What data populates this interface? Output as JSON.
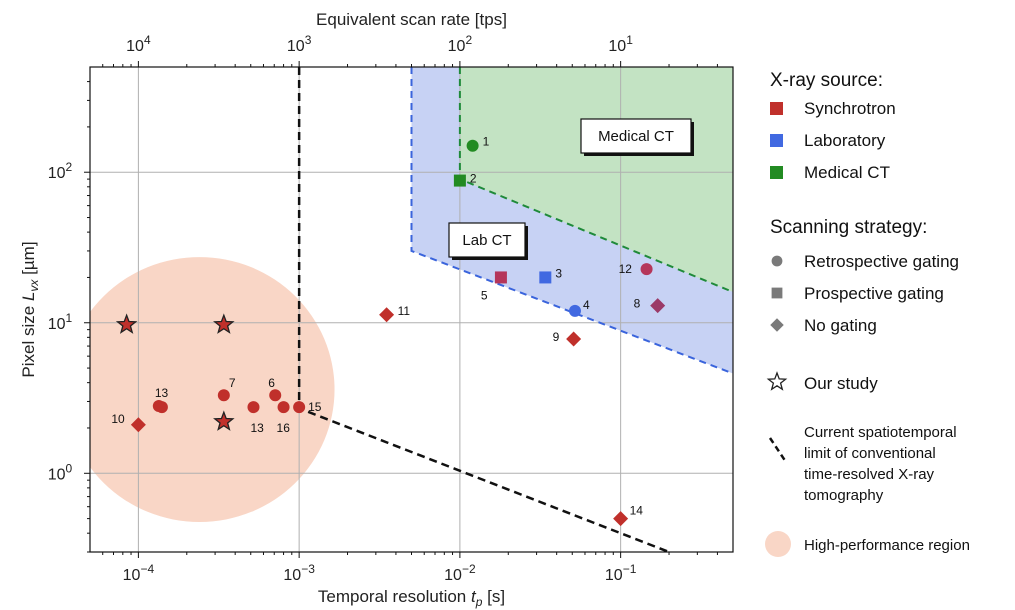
{
  "chart_data": {
    "type": "scatter",
    "xscale": "log",
    "yscale": "log",
    "xlim": [
      5e-05,
      0.5
    ],
    "ylim": [
      0.3,
      500
    ],
    "grid": true,
    "xlabel": "Temporal resolution",
    "xlabel_symbol": "t",
    "xlabel_sub": "p",
    "xlabel_unit": " [s]",
    "ylabel": "Pixel size",
    "ylabel_symbol": "L",
    "ylabel_sub": "vx",
    "ylabel_unit": " [µm]",
    "top_xlabel": "Equivalent scan rate [tps]",
    "x_ticks": [
      {
        "value": 0.0001,
        "base": "10",
        "exp": "−4"
      },
      {
        "value": 0.001,
        "base": "10",
        "exp": "−3"
      },
      {
        "value": 0.01,
        "base": "10",
        "exp": "−2"
      },
      {
        "value": 0.1,
        "base": "10",
        "exp": "−1"
      }
    ],
    "top_ticks": [
      {
        "value": 0.0001,
        "base": "10",
        "exp": "4"
      },
      {
        "value": 0.001,
        "base": "10",
        "exp": "3"
      },
      {
        "value": 0.01,
        "base": "10",
        "exp": "2"
      },
      {
        "value": 0.1,
        "base": "10",
        "exp": "1"
      }
    ],
    "y_ticks": [
      {
        "value": 1,
        "base": "10",
        "exp": "0"
      },
      {
        "value": 10,
        "base": "10",
        "exp": "1"
      },
      {
        "value": 100,
        "base": "10",
        "exp": "2"
      }
    ],
    "colors": {
      "synchrotron": "#c0302b",
      "laboratory": "#4169e1",
      "medical": "#228b22",
      "synchrotron_gated": "#b5365a",
      "synchrotron_nogate_purple": "#9b3a68",
      "medical_region_fill": "#c3e3c3",
      "lab_region_fill": "#c7d2f4",
      "hp_region_fill": "#f9d6c6"
    },
    "regions": {
      "medical_ct_label": "Medical CT",
      "lab_ct_label": "Lab CT",
      "medical_polygon": [
        [
          0.01,
          500
        ],
        [
          0.5,
          500
        ],
        [
          0.5,
          16
        ],
        [
          0.01,
          90
        ]
      ],
      "lab_polygon": [
        [
          0.005,
          500
        ],
        [
          0.5,
          500
        ],
        [
          0.5,
          4.6
        ],
        [
          0.005,
          30
        ]
      ],
      "high_perf_center": [
        0.00024,
        3.6
      ],
      "high_perf_radius_decades": [
        0.84,
        0.88
      ]
    },
    "limit_line": [
      [
        0.001,
        500
      ],
      [
        0.001,
        2.7
      ],
      [
        0.2,
        0.3
      ]
    ],
    "points": [
      {
        "x": 0.012,
        "y": 150,
        "source": "medical",
        "marker": "circle",
        "label": "1"
      },
      {
        "x": 0.01,
        "y": 88,
        "source": "medical",
        "marker": "square",
        "label": "2"
      },
      {
        "x": 0.034,
        "y": 20,
        "source": "laboratory",
        "marker": "square",
        "label": "3"
      },
      {
        "x": 0.052,
        "y": 12,
        "source": "laboratory",
        "marker": "circle",
        "label": "4"
      },
      {
        "x": 0.018,
        "y": 20,
        "source": "synchrotron",
        "marker": "square",
        "label": "5"
      },
      {
        "x": 0.00071,
        "y": 3.3,
        "source": "synchrotron",
        "marker": "circle",
        "label": "6"
      },
      {
        "x": 0.00034,
        "y": 3.3,
        "source": "synchrotron",
        "marker": "circle",
        "label": "7"
      },
      {
        "x": 0.17,
        "y": 13,
        "source": "synchrotron",
        "marker": "diamond",
        "label": "8"
      },
      {
        "x": 0.051,
        "y": 7.8,
        "source": "synchrotron",
        "marker": "diamond",
        "label": "9"
      },
      {
        "x": 0.0001,
        "y": 2.1,
        "source": "synchrotron",
        "marker": "diamond",
        "label": "10"
      },
      {
        "x": 0.0035,
        "y": 11.3,
        "source": "synchrotron",
        "marker": "diamond",
        "label": "11"
      },
      {
        "x": 0.145,
        "y": 22.7,
        "source": "synchrotron",
        "marker": "circle",
        "label": "12"
      },
      {
        "x": 0.00014,
        "y": 2.75,
        "source": "synchrotron",
        "marker": "circle",
        "label": "13"
      },
      {
        "x": 0.00052,
        "y": 2.75,
        "source": "synchrotron",
        "marker": "circle",
        "label": "13"
      },
      {
        "x": 0.1,
        "y": 0.5,
        "source": "synchrotron",
        "marker": "diamond",
        "label": "14"
      },
      {
        "x": 0.001,
        "y": 2.75,
        "source": "synchrotron",
        "marker": "circle",
        "label": "15"
      },
      {
        "x": 0.0008,
        "y": 2.75,
        "source": "synchrotron",
        "marker": "circle",
        "label": "16"
      },
      {
        "x": 0.000134,
        "y": 2.8,
        "source": "synchrotron",
        "marker": "circle",
        "label": ""
      },
      {
        "x": 8.45e-05,
        "y": 9.7,
        "source": "study",
        "marker": "star",
        "label": ""
      },
      {
        "x": 0.00034,
        "y": 9.7,
        "source": "study",
        "marker": "star",
        "label": ""
      },
      {
        "x": 0.00034,
        "y": 2.2,
        "source": "study",
        "marker": "star",
        "label": ""
      }
    ]
  },
  "legend": {
    "source_title": "X-ray source:",
    "source_items": [
      {
        "label": "Synchrotron",
        "color": "#c0302b"
      },
      {
        "label": "Laboratory",
        "color": "#4169e1"
      },
      {
        "label": "Medical CT",
        "color": "#228b22"
      }
    ],
    "strategy_title": "Scanning strategy:",
    "strategy_items": [
      {
        "label": "Retrospective gating",
        "marker": "circle"
      },
      {
        "label": "Prospective gating",
        "marker": "square"
      },
      {
        "label": "No gating",
        "marker": "diamond"
      }
    ],
    "study_label": "Our study",
    "limit_lines": [
      "Current spatiotemporal",
      "limit of conventional",
      "time-resolved X-ray",
      "tomography"
    ],
    "hp_label": "High-performance region"
  }
}
